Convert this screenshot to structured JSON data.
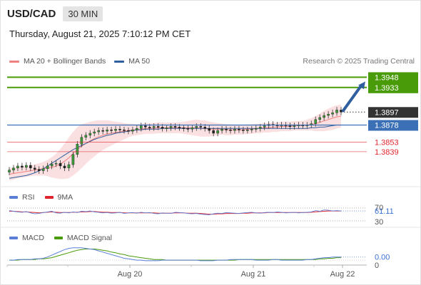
{
  "header": {
    "symbol": "USD/CAD",
    "timeframe": "30 MIN"
  },
  "date_line": "Thursday, August 21, 2025 7:10:12 PM CET",
  "legend": {
    "bollinger_label": "MA 20 + Bollinger Bands",
    "ma50_label": "MA 50",
    "credit": "Research © 2025 Trading Central"
  },
  "colors": {
    "green": "#4a9b09",
    "blue": "#3b6fb6",
    "red": "#e0242d",
    "salmon": "#f08080",
    "band_fill": "#fadadd",
    "arrow": "#2f5f9e",
    "price_box": "#333333"
  },
  "chart_data": {
    "type": "line",
    "x_ticks": [
      "Aug 20",
      "Aug 21",
      "Aug 22"
    ],
    "ylim": [
      1.3795,
      1.3962
    ],
    "close": [
      1.3812,
      1.3815,
      1.3818,
      1.3816,
      1.3819,
      1.3815,
      1.3813,
      1.3811,
      1.3814,
      1.3818,
      1.3821,
      1.3822,
      1.3818,
      1.3815,
      1.382,
      1.3835,
      1.385,
      1.386,
      1.3863,
      1.3866,
      1.3868,
      1.387,
      1.3869,
      1.3871,
      1.387,
      1.3872,
      1.3871,
      1.387,
      1.3869,
      1.3871,
      1.3873,
      1.3877,
      1.3875,
      1.3874,
      1.3876,
      1.3875,
      1.3873,
      1.3874,
      1.3876,
      1.3875,
      1.3874,
      1.3873,
      1.3872,
      1.3874,
      1.3876,
      1.3875,
      1.3873,
      1.387,
      1.3866,
      1.387,
      1.3872,
      1.3871,
      1.387,
      1.3872,
      1.3871,
      1.387,
      1.3871,
      1.3872,
      1.3873,
      1.3875,
      1.3877,
      1.3879,
      1.3878,
      1.3877,
      1.3878,
      1.3877,
      1.3876,
      1.3877,
      1.3878,
      1.3877,
      1.3878,
      1.388,
      1.3886,
      1.3889,
      1.3892,
      1.3894,
      1.3896,
      1.39,
      1.3897
    ],
    "ma20": [
      1.3806,
      1.3807,
      1.3808,
      1.3809,
      1.381,
      1.3811,
      1.3812,
      1.3813,
      1.3814,
      1.3815,
      1.3816,
      1.3818,
      1.3821,
      1.3825,
      1.383,
      1.3836,
      1.3842,
      1.3847,
      1.3851,
      1.3855,
      1.3858,
      1.3861,
      1.3863,
      1.3865,
      1.3866,
      1.3867,
      1.3868,
      1.3869,
      1.387,
      1.3871,
      1.3871,
      1.3872,
      1.3873,
      1.3873,
      1.3873,
      1.3874,
      1.3874,
      1.3874,
      1.3874,
      1.3874,
      1.3874,
      1.3874,
      1.3874,
      1.3874,
      1.3874,
      1.3873,
      1.3873,
      1.3872,
      1.3872,
      1.3872,
      1.3872,
      1.3871,
      1.3871,
      1.3871,
      1.3871,
      1.3871,
      1.3872,
      1.3872,
      1.3873,
      1.3873,
      1.3874,
      1.3874,
      1.3875,
      1.3875,
      1.3876,
      1.3876,
      1.3876,
      1.3877,
      1.3877,
      1.3877,
      1.3878,
      1.3879,
      1.388,
      1.3882,
      1.3884,
      1.3886,
      1.3888,
      1.389,
      1.3891
    ],
    "band_width": [
      0.0009,
      0.0009,
      0.0008,
      0.0008,
      0.0008,
      0.0008,
      0.0008,
      0.0009,
      0.001,
      0.0012,
      0.0015,
      0.0018,
      0.0022,
      0.0026,
      0.003,
      0.0032,
      0.0033,
      0.0032,
      0.003,
      0.0028,
      0.0026,
      0.0024,
      0.0022,
      0.002,
      0.0018,
      0.0016,
      0.0014,
      0.0012,
      0.001,
      0.0009,
      0.0008,
      0.0008,
      0.0008,
      0.0008,
      0.0008,
      0.0008,
      0.0008,
      0.0008,
      0.0008,
      0.0008,
      0.0008,
      0.0009,
      0.001,
      0.0011,
      0.0012,
      0.0012,
      0.0012,
      0.0011,
      0.001,
      0.0009,
      0.0008,
      0.0008,
      0.0008,
      0.0007,
      0.0007,
      0.0007,
      0.0007,
      0.0007,
      0.0007,
      0.0007,
      0.0007,
      0.0007,
      0.0007,
      0.0007,
      0.0007,
      0.0007,
      0.0007,
      0.0007,
      0.0007,
      0.0007,
      0.0008,
      0.0009,
      0.0011,
      0.0013,
      0.0015,
      0.0016,
      0.0017,
      0.0017,
      0.0017
    ],
    "ma50": [
      1.38,
      1.3801,
      1.3802,
      1.3803,
      1.3804,
      1.3806,
      1.3808,
      1.3811,
      1.3814,
      1.3818,
      1.3822,
      1.3826,
      1.383,
      1.3834,
      1.3838,
      1.3842,
      1.3845,
      1.3848,
      1.3851,
      1.3854,
      1.3857,
      1.3859,
      1.3861,
      1.3863,
      1.3864,
      1.3866,
      1.3867,
      1.3868,
      1.3869,
      1.387,
      1.3871,
      1.3871,
      1.3872,
      1.3872,
      1.3872,
      1.3872,
      1.3873,
      1.3873,
      1.3873,
      1.3873,
      1.3873,
      1.3873,
      1.3873,
      1.3873,
      1.3873,
      1.3873,
      1.3873,
      1.3873,
      1.3873,
      1.3873,
      1.3873,
      1.3873,
      1.3873,
      1.3873,
      1.3873,
      1.3873,
      1.3873,
      1.3873,
      1.3873,
      1.3873,
      1.3873,
      1.3873,
      1.3873,
      1.3873,
      1.3873,
      1.3873,
      1.3873,
      1.3873,
      1.3873,
      1.3873,
      1.3873,
      1.3874,
      1.3874,
      1.3875,
      1.3875,
      1.3876,
      1.3877,
      1.3878,
      1.3878
    ],
    "levels": [
      {
        "value": 1.3948,
        "label": "1.3948",
        "color": "#4a9b09",
        "style": "resistance"
      },
      {
        "value": 1.3933,
        "label": "1.3933",
        "color": "#4a9b09",
        "style": "resistance"
      },
      {
        "value": 1.3897,
        "label": "1.3897",
        "color": "#333333",
        "style": "last"
      },
      {
        "value": 1.3878,
        "label": "1.3878",
        "color": "#3b6fb6",
        "style": "pivot"
      },
      {
        "value": 1.3853,
        "label": "1.3853",
        "color": "#e0242d",
        "style": "support"
      },
      {
        "value": 1.3839,
        "label": "1.3839",
        "color": "#e0242d",
        "style": "support"
      }
    ],
    "rsi": {
      "labels": [
        "RSI",
        "9MA"
      ],
      "value_label": "61.11",
      "tick_labels": [
        "70",
        "30"
      ],
      "ylim": [
        0,
        100
      ],
      "rsi": [
        62,
        60,
        58,
        57,
        59,
        55,
        52,
        53,
        56,
        58,
        60,
        55,
        54,
        57,
        55,
        58,
        56,
        60,
        59,
        61,
        58,
        57,
        55,
        56,
        54,
        55,
        57,
        53,
        55,
        56,
        54,
        57,
        55,
        56,
        53,
        52,
        55,
        54,
        53,
        57,
        56,
        55,
        53,
        52,
        53,
        51,
        50,
        49,
        52,
        54,
        53,
        56,
        55,
        54,
        53,
        55,
        56,
        57,
        55,
        54,
        56,
        57,
        56,
        58,
        57,
        55,
        56,
        57,
        55,
        56,
        57,
        58,
        62,
        60,
        64,
        63,
        61,
        62,
        61
      ],
      "ma9": [
        60,
        60,
        59,
        58,
        58,
        57,
        56,
        55,
        56,
        57,
        58,
        57,
        56,
        56,
        56,
        57,
        57,
        58,
        58,
        59,
        59,
        58,
        57,
        57,
        56,
        56,
        56,
        55,
        55,
        55,
        55,
        55,
        55,
        55,
        55,
        54,
        54,
        54,
        54,
        55,
        55,
        55,
        54,
        54,
        54,
        53,
        52,
        51,
        51,
        52,
        52,
        53,
        53,
        53,
        53,
        54,
        54,
        55,
        55,
        55,
        55,
        56,
        56,
        56,
        56,
        56,
        56,
        56,
        56,
        56,
        56,
        57,
        58,
        59,
        60,
        61,
        61,
        61,
        61
      ]
    },
    "macd": {
      "labels": [
        "MACD",
        "MACD Signal"
      ],
      "value_label": "0.00",
      "tick_labels": [
        "0"
      ],
      "ylim": [
        -0.0008,
        0.0022
      ],
      "macd": [
        0.0,
        0.0,
        0.0001,
        0.0001,
        0.0001,
        0.0001,
        0.0002,
        0.0002,
        0.0003,
        0.0005,
        0.0008,
        0.0011,
        0.0014,
        0.0017,
        0.0019,
        0.002,
        0.002,
        0.002,
        0.0019,
        0.0018,
        0.0017,
        0.0015,
        0.0013,
        0.0011,
        0.0009,
        0.0007,
        0.0005,
        0.0003,
        0.0002,
        0.0001,
        0.0,
        0.0,
        -0.0001,
        -0.0001,
        -0.0001,
        -0.0001,
        0.0,
        0.0,
        0.0,
        0.0,
        0.0,
        0.0,
        0.0,
        0.0,
        0.0,
        -0.0001,
        -0.0001,
        -0.0001,
        -0.0001,
        0.0,
        0.0,
        0.0,
        0.0001,
        0.0001,
        0.0001,
        0.0001,
        0.0001,
        0.0001,
        0.0,
        0.0,
        0.0,
        0.0,
        0.0001,
        0.0001,
        0.0,
        0.0,
        0.0,
        0.0,
        0.0,
        0.0,
        0.0001,
        0.0001,
        0.0002,
        0.0003,
        0.0004,
        0.0004,
        0.0005,
        0.0005,
        0.0005
      ],
      "signal": [
        0.0,
        0.0,
        0.0,
        0.0001,
        0.0001,
        0.0001,
        0.0001,
        0.0002,
        0.0002,
        0.0003,
        0.0004,
        0.0006,
        0.0008,
        0.001,
        0.0012,
        0.0014,
        0.0016,
        0.0017,
        0.0018,
        0.0018,
        0.0018,
        0.0017,
        0.0016,
        0.0015,
        0.0013,
        0.0012,
        0.001,
        0.0009,
        0.0007,
        0.0006,
        0.0005,
        0.0004,
        0.0003,
        0.0002,
        0.0001,
        0.0001,
        0.0001,
        0.0,
        0.0,
        0.0,
        0.0,
        0.0,
        0.0,
        0.0,
        0.0,
        0.0,
        0.0,
        0.0,
        0.0,
        0.0,
        0.0,
        0.0,
        0.0,
        0.0,
        0.0001,
        0.0001,
        0.0001,
        0.0001,
        0.0001,
        0.0001,
        0.0001,
        0.0001,
        0.0001,
        0.0001,
        0.0001,
        0.0001,
        0.0001,
        0.0001,
        0.0001,
        0.0001,
        0.0001,
        0.0001,
        0.0001,
        0.0002,
        0.0002,
        0.0003,
        0.0003,
        0.0004,
        0.0004
      ]
    }
  }
}
